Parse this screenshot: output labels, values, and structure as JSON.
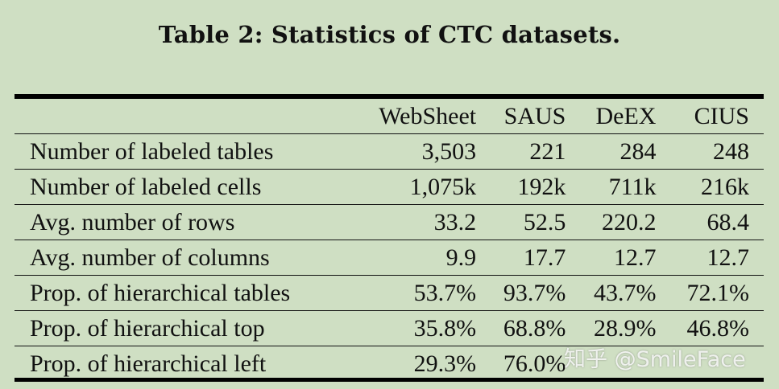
{
  "caption": "Table 2: Statistics of CTC datasets.",
  "columns": [
    "WebSheet",
    "SAUS",
    "DeEX",
    "CIUS"
  ],
  "rows": [
    {
      "label": "Number of labeled tables",
      "values": [
        "3,503",
        "221",
        "284",
        "248"
      ]
    },
    {
      "label": "Number of labeled cells",
      "values": [
        "1,075k",
        "192k",
        "711k",
        "216k"
      ]
    },
    {
      "label": "Avg. number of rows",
      "values": [
        "33.2",
        "52.5",
        "220.2",
        "68.4"
      ]
    },
    {
      "label": "Avg. number of columns",
      "values": [
        "9.9",
        "17.7",
        "12.7",
        "12.7"
      ]
    },
    {
      "label": "Prop. of hierarchical tables",
      "values": [
        "53.7%",
        "93.7%",
        "43.7%",
        "72.1%"
      ]
    },
    {
      "label": "Prop. of hierarchical top",
      "values": [
        "35.8%",
        "68.8%",
        "28.9%",
        "46.8%"
      ]
    },
    {
      "label": "Prop. of hierarchical left",
      "values": [
        "29.3%",
        "76.0%",
        "",
        ""
      ]
    }
  ],
  "watermark": "知乎 @SmileFace"
}
